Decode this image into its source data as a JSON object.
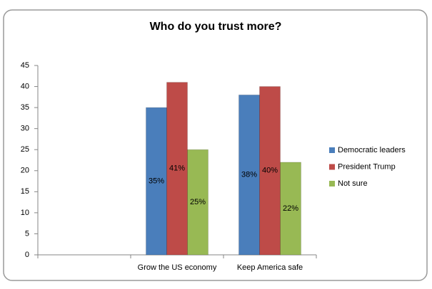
{
  "chart_data": {
    "type": "bar",
    "title": "Who do you trust more?",
    "categories": [
      null,
      "Grow the US economy",
      "Keep America safe"
    ],
    "series": [
      {
        "name": "Democratic leaders",
        "color": "#4a7ebb",
        "values": [
          null,
          35,
          38
        ],
        "value_labels": [
          null,
          "35%",
          "38%"
        ]
      },
      {
        "name": "President Trump",
        "color": "#be4b48",
        "values": [
          null,
          41,
          40
        ],
        "value_labels": [
          null,
          "41%",
          "40%"
        ]
      },
      {
        "name": "Not sure",
        "color": "#98b954",
        "values": [
          null,
          25,
          22
        ],
        "value_labels": [
          null,
          "25%",
          "22%"
        ]
      }
    ],
    "ylim": [
      0,
      45
    ],
    "yticks": [
      0,
      5,
      10,
      15,
      20,
      25,
      30,
      35,
      40,
      45
    ],
    "grid": false,
    "legend": "right"
  }
}
